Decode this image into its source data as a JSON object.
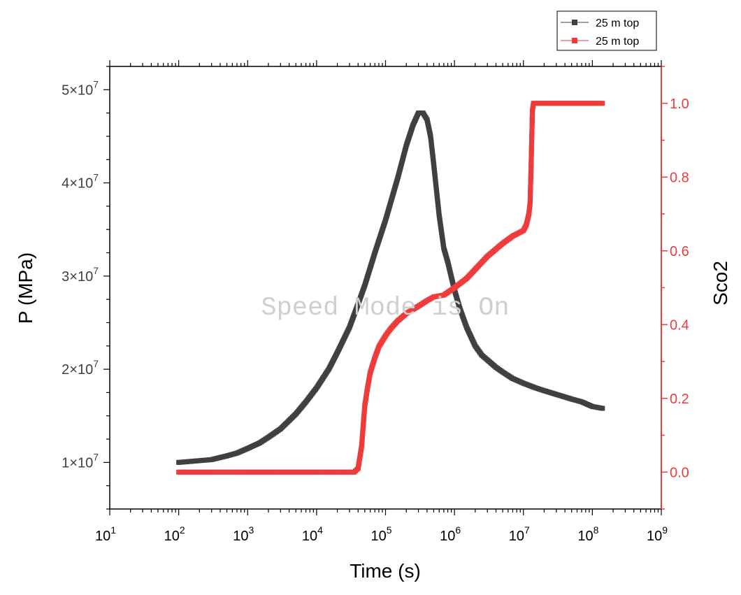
{
  "chart_data": {
    "type": "scatter",
    "title": "",
    "xlabel": "Time (s)",
    "ylabel_left": "P (MPa)",
    "ylabel_right": "Sco2",
    "x_scale": "log",
    "xlim": [
      10,
      1000000000
    ],
    "ylim_left": [
      5000000,
      52500000
    ],
    "ylim_right": [
      -0.1,
      1.1
    ],
    "x_ticks": [
      {
        "value": 10,
        "label": "10",
        "exp": "1"
      },
      {
        "value": 100,
        "label": "10",
        "exp": "2"
      },
      {
        "value": 1000,
        "label": "10",
        "exp": "3"
      },
      {
        "value": 10000,
        "label": "10",
        "exp": "4"
      },
      {
        "value": 100000,
        "label": "10",
        "exp": "5"
      },
      {
        "value": 1000000,
        "label": "10",
        "exp": "6"
      },
      {
        "value": 10000000,
        "label": "10",
        "exp": "7"
      },
      {
        "value": 100000000,
        "label": "10",
        "exp": "8"
      },
      {
        "value": 1000000000,
        "label": "10",
        "exp": "9"
      }
    ],
    "y_left_ticks": [
      {
        "value": 10000000,
        "label": "1×10",
        "exp": "7"
      },
      {
        "value": 20000000,
        "label": "2×10",
        "exp": "7"
      },
      {
        "value": 30000000,
        "label": "3×10",
        "exp": "7"
      },
      {
        "value": 40000000,
        "label": "4×10",
        "exp": "7"
      },
      {
        "value": 50000000,
        "label": "5×10",
        "exp": "7"
      }
    ],
    "y_right_ticks": [
      {
        "value": 0.0,
        "label": "0.0"
      },
      {
        "value": 0.2,
        "label": "0.2"
      },
      {
        "value": 0.4,
        "label": "0.4"
      },
      {
        "value": 0.6,
        "label": "0.6"
      },
      {
        "value": 0.8,
        "label": "0.8"
      },
      {
        "value": 1.0,
        "label": "1.0"
      }
    ],
    "legend_position": "top-right, outside plot",
    "grid": false,
    "series": [
      {
        "name": "25 m top",
        "axis": "left",
        "color": "#404040",
        "marker": "square",
        "x": [
          100,
          300,
          500,
          700,
          1000,
          1500,
          2000,
          3000,
          4000,
          5000,
          7000,
          10000,
          15000,
          20000,
          30000,
          40000,
          50000,
          70000,
          100000,
          150000,
          200000,
          250000,
          300000,
          350000,
          400000,
          450000,
          500000,
          600000,
          700000,
          800000,
          1000000,
          1200000,
          1500000,
          2000000,
          2500000,
          3000000,
          4000000,
          5000000,
          7000000,
          10000000,
          15000000,
          20000000,
          30000000,
          50000000,
          70000000,
          100000000,
          140000000
        ],
        "y": [
          10000000,
          10300000,
          10700000,
          11000000,
          11500000,
          12100000,
          12700000,
          13600000,
          14500000,
          15200000,
          16500000,
          18000000,
          20000000,
          21800000,
          24500000,
          27000000,
          29000000,
          32500000,
          36000000,
          40500000,
          44000000,
          46200000,
          47500000,
          47500000,
          46800000,
          45000000,
          42000000,
          36500000,
          33000000,
          31500000,
          28500000,
          26500000,
          24500000,
          22500000,
          21500000,
          21000000,
          20200000,
          19700000,
          19000000,
          18500000,
          18000000,
          17700000,
          17300000,
          16800000,
          16500000,
          16000000,
          15800000
        ]
      },
      {
        "name": "25 m top",
        "axis": "right",
        "color": "#ee3b3b",
        "marker": "square",
        "x": [
          100,
          300,
          500,
          1000,
          2000,
          5000,
          10000,
          20000,
          35000,
          40000,
          45000,
          50000,
          55000,
          60000,
          70000,
          80000,
          100000,
          120000,
          150000,
          200000,
          300000,
          400000,
          500000,
          700000,
          1000000,
          1500000,
          2000000,
          3000000,
          5000000,
          7000000,
          10000000,
          11000000,
          12000000,
          12500000,
          13000000,
          13500000,
          14000000,
          20000000,
          50000000,
          100000000,
          140000000
        ],
        "y": [
          0.0,
          0.0,
          0.0,
          0.0,
          0.0,
          0.0,
          0.0,
          0.0,
          0.0,
          0.01,
          0.07,
          0.18,
          0.23,
          0.27,
          0.31,
          0.34,
          0.37,
          0.39,
          0.41,
          0.43,
          0.45,
          0.465,
          0.475,
          0.48,
          0.5,
          0.525,
          0.55,
          0.585,
          0.62,
          0.64,
          0.655,
          0.67,
          0.7,
          0.73,
          0.85,
          0.98,
          1.0,
          1.0,
          1.0,
          1.0,
          1.0
        ]
      }
    ],
    "watermark": "Speed Mode is On"
  }
}
